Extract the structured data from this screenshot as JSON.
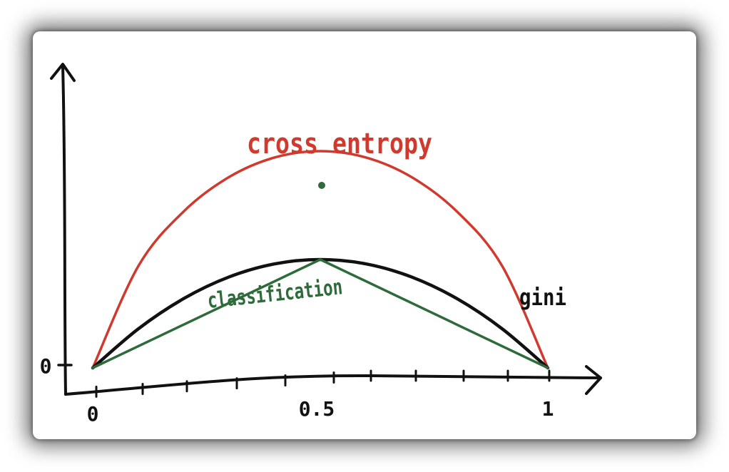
{
  "chart_data": {
    "type": "line",
    "xlim": [
      0,
      1
    ],
    "x_ticks": [
      "0",
      "0.5",
      "1"
    ],
    "y_ticks": [
      "0"
    ],
    "grid": false,
    "legend": "none",
    "series": [
      {
        "name": "cross entropy",
        "color": "#d03a2e",
        "x": [
          0,
          0.1,
          0.2,
          0.3,
          0.4,
          0.5,
          0.6,
          0.7,
          0.8,
          0.9,
          1
        ],
        "y": [
          0,
          0.469,
          0.722,
          0.881,
          0.971,
          1.0,
          0.971,
          0.881,
          0.722,
          0.469,
          0
        ]
      },
      {
        "name": "gini",
        "color": "#111111",
        "x": [
          0,
          0.1,
          0.2,
          0.3,
          0.4,
          0.5,
          0.6,
          0.7,
          0.8,
          0.9,
          1
        ],
        "y": [
          0,
          0.18,
          0.32,
          0.42,
          0.48,
          0.5,
          0.48,
          0.42,
          0.32,
          0.18,
          0
        ]
      },
      {
        "name": "classification",
        "color": "#2e6b3a",
        "x": [
          0,
          0.5,
          1
        ],
        "y": [
          0,
          0.5,
          0
        ]
      }
    ]
  }
}
